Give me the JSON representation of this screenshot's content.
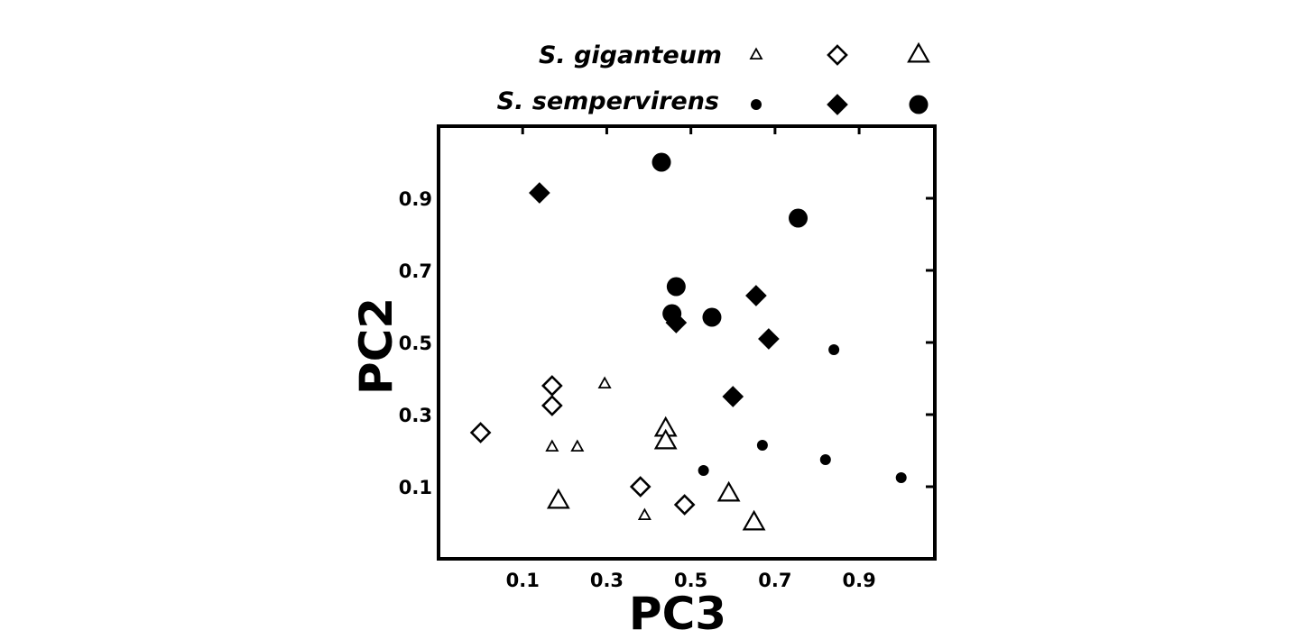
{
  "chart_data": {
    "type": "scatter",
    "title": "",
    "xlabel": "PC3",
    "ylabel": "PC2",
    "xlim": [
      -0.1,
      1.08
    ],
    "ylim": [
      -0.1,
      1.1
    ],
    "x_ticks": [
      "0.1",
      "0.3",
      "0.5",
      "0.7",
      "0.9"
    ],
    "y_ticks": [
      "0.1",
      "0.3",
      "0.5",
      "0.7",
      "0.9"
    ],
    "grid": false,
    "legend_placement": "top",
    "legend": {
      "rows": [
        {
          "label": "S. giganteum",
          "filled": false
        },
        {
          "label": "S. sempervirens",
          "filled": true
        }
      ],
      "columns": [
        "triangle-small",
        "diamond",
        "triangle-large"
      ]
    },
    "series": [
      {
        "group": "S. giganteum",
        "marker": "triangle-small",
        "filled": false,
        "points": [
          [
            0.17,
            0.21
          ],
          [
            0.23,
            0.21
          ],
          [
            0.295,
            0.385
          ],
          [
            0.39,
            0.02
          ]
        ]
      },
      {
        "group": "S. giganteum",
        "marker": "diamond",
        "filled": false,
        "points": [
          [
            0.0,
            0.25
          ],
          [
            0.17,
            0.38
          ],
          [
            0.17,
            0.325
          ],
          [
            0.38,
            0.1
          ],
          [
            0.485,
            0.05
          ]
        ]
      },
      {
        "group": "S. giganteum",
        "marker": "triangle-large",
        "filled": false,
        "points": [
          [
            0.185,
            0.06
          ],
          [
            0.44,
            0.26
          ],
          [
            0.44,
            0.225
          ],
          [
            0.59,
            0.08
          ],
          [
            0.65,
            0.0
          ]
        ]
      },
      {
        "group": "S. sempervirens",
        "marker": "circle-small",
        "filled": true,
        "points": [
          [
            0.53,
            0.145
          ],
          [
            0.67,
            0.215
          ],
          [
            0.82,
            0.175
          ],
          [
            0.84,
            0.48
          ],
          [
            1.0,
            0.125
          ]
        ]
      },
      {
        "group": "S. sempervirens",
        "marker": "diamond",
        "filled": true,
        "points": [
          [
            0.14,
            0.915
          ],
          [
            0.465,
            0.555
          ],
          [
            0.6,
            0.35
          ],
          [
            0.655,
            0.63
          ],
          [
            0.685,
            0.51
          ]
        ]
      },
      {
        "group": "S. sempervirens",
        "marker": "circle-large",
        "filled": true,
        "points": [
          [
            0.43,
            1.0
          ],
          [
            0.455,
            0.58
          ],
          [
            0.465,
            0.655
          ],
          [
            0.55,
            0.57
          ],
          [
            0.755,
            0.845
          ]
        ]
      }
    ]
  }
}
